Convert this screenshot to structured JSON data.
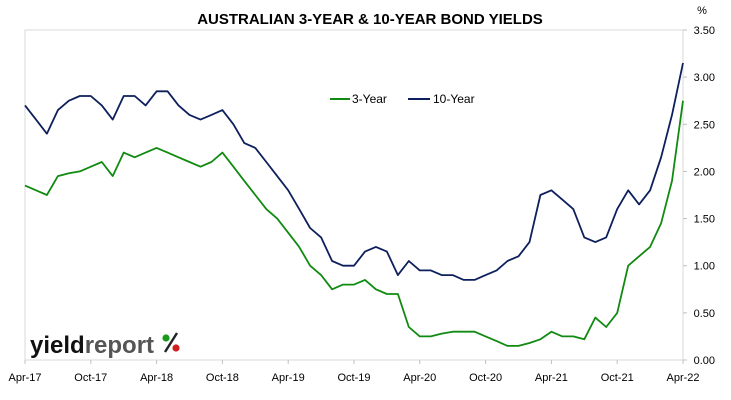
{
  "chart_data": {
    "type": "line",
    "title": "AUSTRALIAN 3-YEAR & 10-YEAR BOND YIELDS",
    "y_unit": "%",
    "ylim": [
      0,
      3.5
    ],
    "yticks": [
      "0.00",
      "0.50",
      "1.00",
      "1.50",
      "2.00",
      "2.50",
      "3.00",
      "3.50"
    ],
    "y_axis_side": "right",
    "grid": false,
    "legend_position": "top-center",
    "x_tick_labels": [
      "Apr-17",
      "Oct-17",
      "Apr-18",
      "Oct-18",
      "Apr-19",
      "Oct-19",
      "Apr-20",
      "Oct-20",
      "Apr-21",
      "Oct-21",
      "Apr-22"
    ],
    "x": [
      "Apr-17",
      "May-17",
      "Jun-17",
      "Jul-17",
      "Aug-17",
      "Sep-17",
      "Oct-17",
      "Nov-17",
      "Dec-17",
      "Jan-18",
      "Feb-18",
      "Mar-18",
      "Apr-18",
      "May-18",
      "Jun-18",
      "Jul-18",
      "Aug-18",
      "Sep-18",
      "Oct-18",
      "Nov-18",
      "Dec-18",
      "Jan-19",
      "Feb-19",
      "Mar-19",
      "Apr-19",
      "May-19",
      "Jun-19",
      "Jul-19",
      "Aug-19",
      "Sep-19",
      "Oct-19",
      "Nov-19",
      "Dec-19",
      "Jan-20",
      "Feb-20",
      "Mar-20",
      "Apr-20",
      "May-20",
      "Jun-20",
      "Jul-20",
      "Aug-20",
      "Sep-20",
      "Oct-20",
      "Nov-20",
      "Dec-20",
      "Jan-21",
      "Feb-21",
      "Mar-21",
      "Apr-21",
      "May-21",
      "Jun-21",
      "Jul-21",
      "Aug-21",
      "Sep-21",
      "Oct-21",
      "Nov-21",
      "Dec-21",
      "Jan-22",
      "Feb-22",
      "Mar-22",
      "Apr-22"
    ],
    "series": [
      {
        "name": "3-Year",
        "color": "#118a11",
        "values": [
          1.85,
          1.8,
          1.75,
          1.95,
          1.98,
          2.0,
          2.05,
          2.1,
          1.95,
          2.2,
          2.15,
          2.2,
          2.25,
          2.2,
          2.15,
          2.1,
          2.05,
          2.1,
          2.2,
          2.05,
          1.9,
          1.75,
          1.6,
          1.5,
          1.35,
          1.2,
          1.0,
          0.9,
          0.75,
          0.8,
          0.8,
          0.85,
          0.75,
          0.7,
          0.7,
          0.35,
          0.25,
          0.25,
          0.28,
          0.3,
          0.3,
          0.3,
          0.25,
          0.2,
          0.15,
          0.15,
          0.18,
          0.22,
          0.3,
          0.25,
          0.25,
          0.22,
          0.45,
          0.35,
          0.5,
          1.0,
          1.1,
          1.2,
          1.45,
          1.9,
          2.75
        ]
      },
      {
        "name": "10-Year",
        "color": "#0d1f5c",
        "values": [
          2.7,
          2.55,
          2.4,
          2.65,
          2.75,
          2.8,
          2.8,
          2.7,
          2.55,
          2.8,
          2.8,
          2.7,
          2.85,
          2.85,
          2.7,
          2.6,
          2.55,
          2.6,
          2.65,
          2.5,
          2.3,
          2.25,
          2.1,
          1.95,
          1.8,
          1.6,
          1.4,
          1.3,
          1.05,
          1.0,
          1.0,
          1.15,
          1.2,
          1.15,
          0.9,
          1.05,
          0.95,
          0.95,
          0.9,
          0.9,
          0.85,
          0.85,
          0.9,
          0.95,
          1.05,
          1.1,
          1.25,
          1.75,
          1.8,
          1.7,
          1.6,
          1.3,
          1.25,
          1.3,
          1.6,
          1.8,
          1.65,
          1.8,
          2.15,
          2.6,
          3.15
        ]
      }
    ]
  },
  "logo": {
    "yield": "yield",
    "report": "report",
    "percent": "%"
  }
}
